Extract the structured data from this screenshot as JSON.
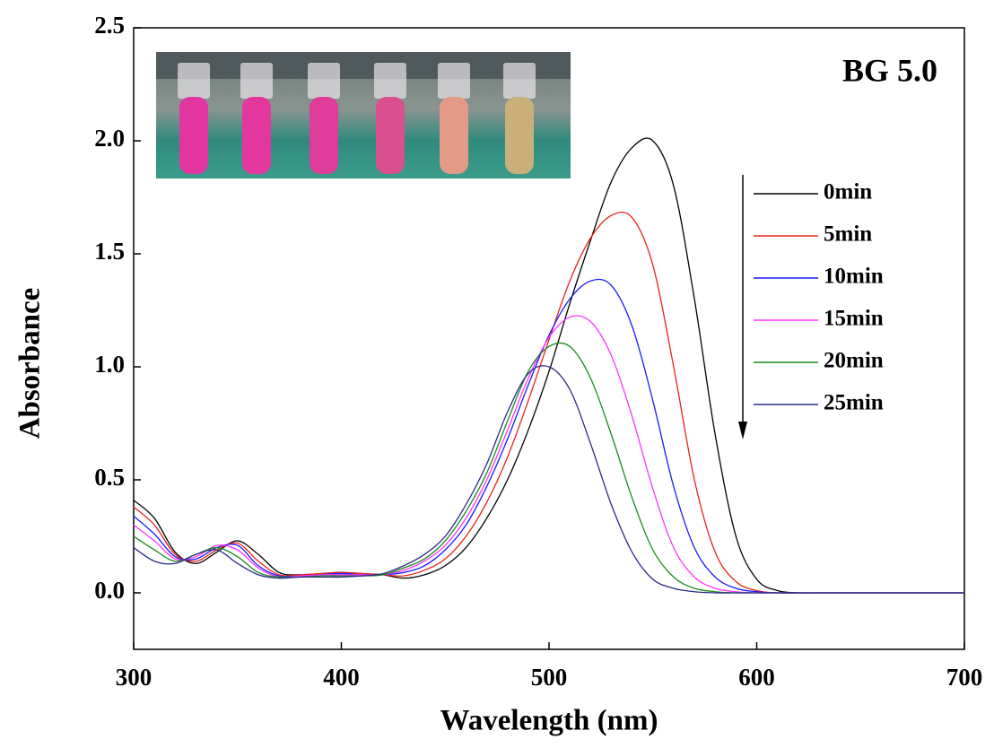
{
  "chart_data": {
    "type": "line",
    "xlabel": "Wavelength (nm)",
    "ylabel": "Absorbance",
    "annotation": "BG 5.0",
    "x": [
      300,
      310,
      320,
      330,
      340,
      350,
      360,
      370,
      380,
      390,
      400,
      410,
      420,
      430,
      440,
      450,
      460,
      470,
      480,
      490,
      500,
      510,
      520,
      530,
      540,
      550,
      560,
      570,
      580,
      590,
      600,
      610,
      620,
      630,
      640,
      650,
      660,
      670,
      680,
      690,
      700
    ],
    "series": [
      {
        "name": "0min",
        "color": "#000000",
        "values": [
          0.41,
          0.33,
          0.18,
          0.13,
          0.18,
          0.23,
          0.17,
          0.09,
          0.08,
          0.085,
          0.09,
          0.085,
          0.08,
          0.065,
          0.08,
          0.12,
          0.2,
          0.33,
          0.5,
          0.72,
          0.98,
          1.28,
          1.56,
          1.82,
          1.97,
          2.0,
          1.8,
          1.3,
          0.7,
          0.25,
          0.06,
          0.01,
          0,
          0,
          0,
          0,
          0,
          0,
          0,
          0,
          0
        ]
      },
      {
        "name": "5min",
        "color": "#e8231a",
        "values": [
          0.38,
          0.3,
          0.17,
          0.14,
          0.19,
          0.22,
          0.14,
          0.08,
          0.08,
          0.085,
          0.09,
          0.085,
          0.08,
          0.075,
          0.1,
          0.15,
          0.25,
          0.4,
          0.6,
          0.85,
          1.12,
          1.38,
          1.57,
          1.67,
          1.66,
          1.45,
          1.0,
          0.5,
          0.18,
          0.05,
          0.01,
          0,
          0,
          0,
          0,
          0,
          0,
          0,
          0,
          0,
          0
        ]
      },
      {
        "name": "10min",
        "color": "#1a1aff",
        "values": [
          0.34,
          0.26,
          0.16,
          0.15,
          0.2,
          0.21,
          0.12,
          0.075,
          0.075,
          0.08,
          0.085,
          0.08,
          0.08,
          0.09,
          0.12,
          0.19,
          0.3,
          0.47,
          0.68,
          0.92,
          1.14,
          1.3,
          1.38,
          1.36,
          1.18,
          0.85,
          0.47,
          0.2,
          0.07,
          0.02,
          0.005,
          0,
          0,
          0,
          0,
          0,
          0,
          0,
          0,
          0,
          0
        ]
      },
      {
        "name": "15min",
        "color": "#ff33ff",
        "values": [
          0.3,
          0.23,
          0.15,
          0.16,
          0.21,
          0.19,
          0.11,
          0.07,
          0.075,
          0.08,
          0.08,
          0.08,
          0.08,
          0.1,
          0.14,
          0.21,
          0.33,
          0.5,
          0.72,
          0.95,
          1.13,
          1.22,
          1.2,
          1.05,
          0.78,
          0.46,
          0.2,
          0.07,
          0.02,
          0.005,
          0,
          0,
          0,
          0,
          0,
          0,
          0,
          0,
          0,
          0,
          0
        ]
      },
      {
        "name": "20min",
        "color": "#1a8a1a",
        "values": [
          0.25,
          0.19,
          0.14,
          0.17,
          0.2,
          0.16,
          0.09,
          0.07,
          0.07,
          0.075,
          0.075,
          0.075,
          0.08,
          0.11,
          0.15,
          0.23,
          0.36,
          0.53,
          0.76,
          0.98,
          1.09,
          1.09,
          0.95,
          0.7,
          0.42,
          0.19,
          0.07,
          0.02,
          0.005,
          0,
          0,
          0,
          0,
          0,
          0,
          0,
          0,
          0,
          0,
          0,
          0
        ]
      },
      {
        "name": "25min",
        "color": "#2a2a8a",
        "values": [
          0.2,
          0.14,
          0.13,
          0.17,
          0.19,
          0.13,
          0.08,
          0.065,
          0.07,
          0.07,
          0.07,
          0.075,
          0.085,
          0.12,
          0.17,
          0.25,
          0.39,
          0.57,
          0.8,
          0.97,
          1.0,
          0.9,
          0.66,
          0.39,
          0.18,
          0.06,
          0.02,
          0.005,
          0,
          0,
          0,
          0,
          0,
          0,
          0,
          0,
          0,
          0,
          0,
          0,
          0
        ]
      }
    ],
    "xlim": [
      300,
      700
    ],
    "xticks": [
      300,
      400,
      500,
      600,
      700
    ],
    "ylim": [
      -0.25,
      2.5
    ],
    "yticks": [
      {
        "value": 0,
        "label": "0.0"
      },
      0.5,
      {
        "value": 1,
        "label": "1.0"
      },
      1.5,
      {
        "value": 2,
        "label": "2.0"
      },
      2.5
    ],
    "legend": "right"
  }
}
